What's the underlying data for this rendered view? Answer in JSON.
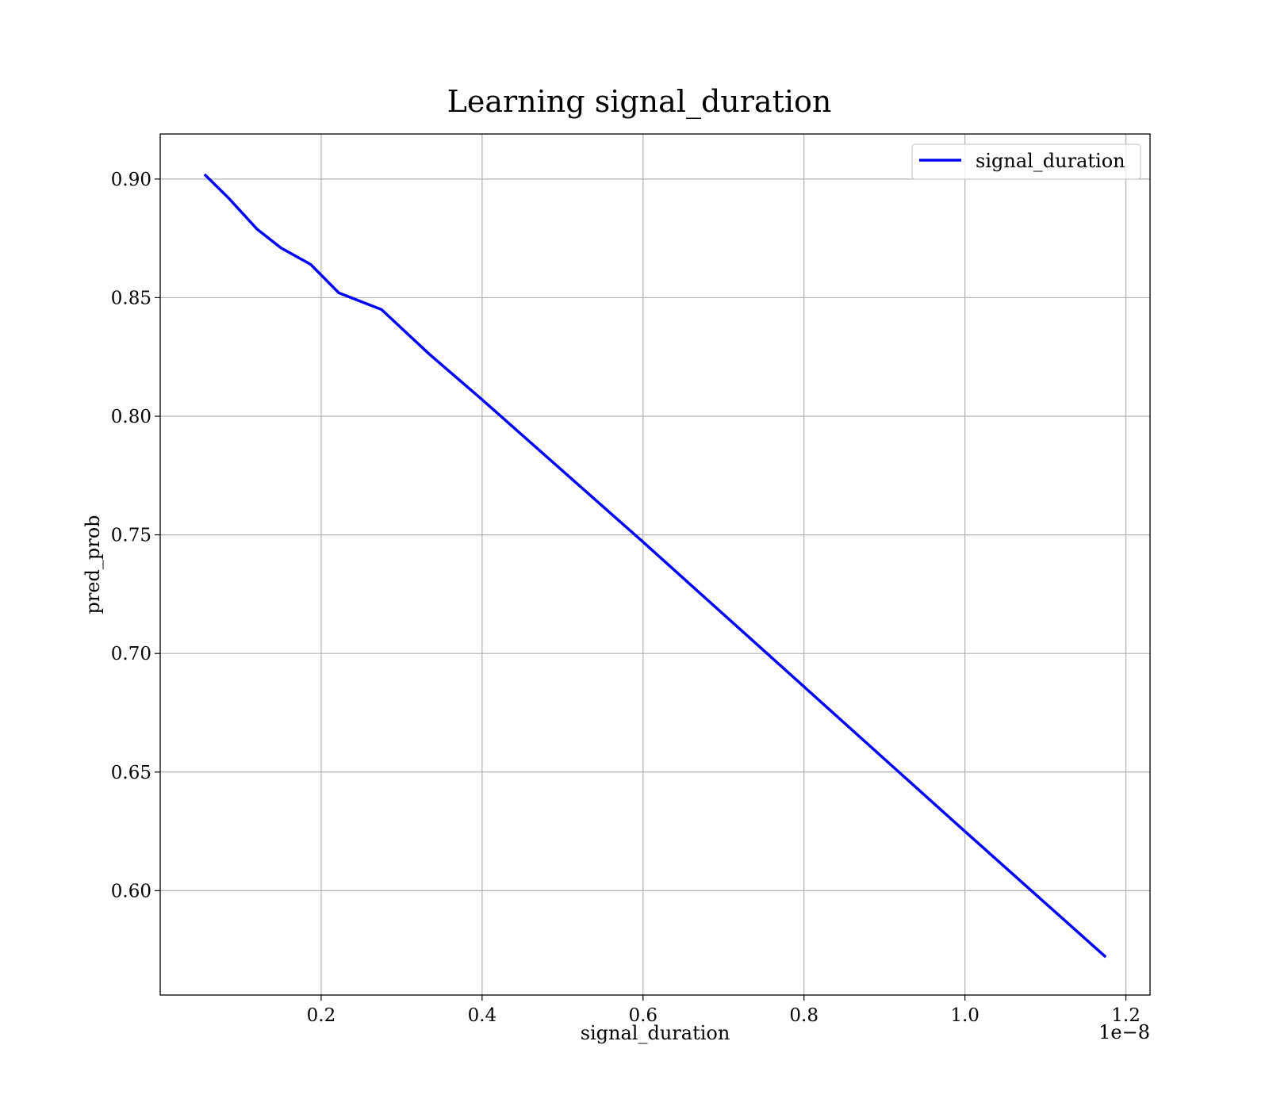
{
  "chart_data": {
    "type": "line",
    "title": "Learning signal_duration",
    "xlabel": "signal_duration",
    "ylabel": "pred_prob",
    "x_offset_text": "1e−8",
    "x_scale_factor": 1e-08,
    "xlim": [
      0.0,
      1.23
    ],
    "ylim": [
      0.556,
      0.919
    ],
    "x_ticks": [
      0.2,
      0.4,
      0.6,
      0.8,
      1.0,
      1.2
    ],
    "x_tick_labels": [
      "0.2",
      "0.4",
      "0.6",
      "0.8",
      "1.0",
      "1.2"
    ],
    "y_ticks": [
      0.6,
      0.65,
      0.7,
      0.75,
      0.8,
      0.85,
      0.9
    ],
    "y_tick_labels": [
      "0.60",
      "0.65",
      "0.70",
      "0.75",
      "0.80",
      "0.85",
      "0.90"
    ],
    "grid": true,
    "legend_position": "top-right",
    "series": [
      {
        "name": "signal_duration",
        "color": "#0000ff",
        "x": [
          0.055,
          0.085,
          0.12,
          0.15,
          0.187,
          0.222,
          0.275,
          0.335,
          0.4,
          0.6,
          0.8,
          1.0,
          1.175
        ],
        "y": [
          0.902,
          0.892,
          0.879,
          0.871,
          0.864,
          0.852,
          0.845,
          0.826,
          0.807,
          0.747,
          0.686,
          0.625,
          0.572
        ]
      }
    ]
  }
}
